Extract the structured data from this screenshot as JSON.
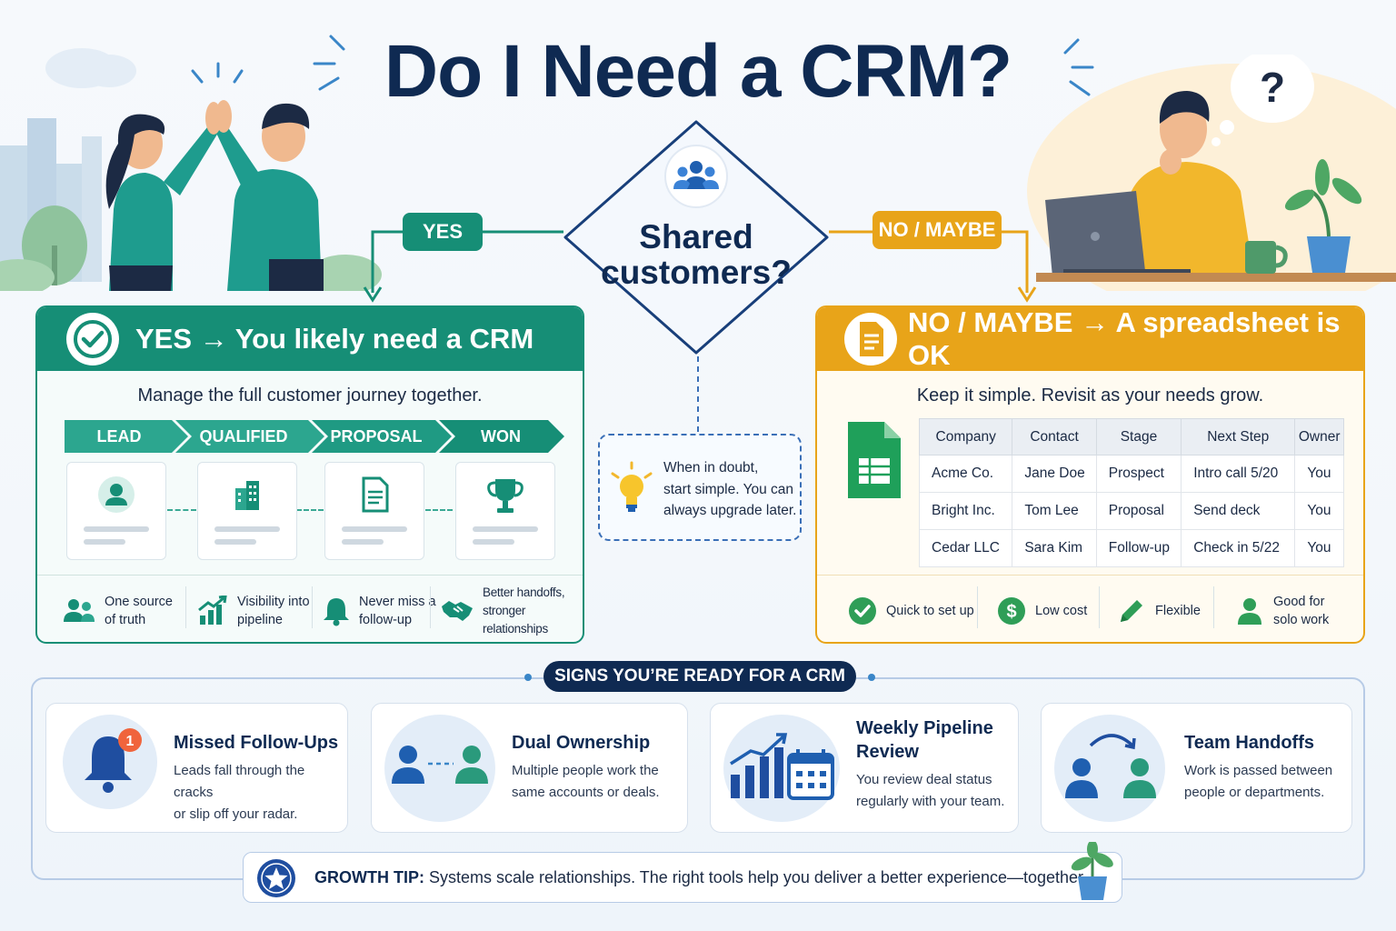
{
  "title": "Do I Need a CRM?",
  "decision": {
    "question_line1": "Shared",
    "question_line2": "customers?",
    "yes_label": "YES",
    "no_label": "NO / MAYBE"
  },
  "yes_panel": {
    "heading": "YES → You likely need a CRM",
    "subtitle": "Manage the full customer journey together.",
    "stages": [
      "LEAD",
      "QUALIFIED",
      "PROPOSAL",
      "WON"
    ],
    "benefits": [
      {
        "line1": "One source",
        "line2": "of truth",
        "icon": "people-icon"
      },
      {
        "line1": "Visibility into",
        "line2": "pipeline",
        "icon": "growth-chart-icon"
      },
      {
        "line1": "Never miss a",
        "line2": "follow-up",
        "icon": "bell-icon"
      },
      {
        "line1": "Better handoffs,",
        "line2": "stronger relationships",
        "icon": "handshake-icon"
      }
    ],
    "accent": "#168e76"
  },
  "no_panel": {
    "heading": "NO / MAYBE → A spreadsheet is OK",
    "subtitle": "Keep it simple. Revisit as your needs grow.",
    "table": {
      "headers": [
        "Company",
        "Contact",
        "Stage",
        "Next Step",
        "Owner"
      ],
      "rows": [
        [
          "Acme Co.",
          "Jane Doe",
          "Prospect",
          "Intro call 5/20",
          "You"
        ],
        [
          "Bright Inc.",
          "Tom Lee",
          "Proposal",
          "Send deck",
          "You"
        ],
        [
          "Cedar LLC",
          "Sara Kim",
          "Follow-up",
          "Check in 5/22",
          "You"
        ]
      ]
    },
    "benefits": [
      {
        "line1": "Quick to set up",
        "line2": "",
        "icon": "check-circle-icon"
      },
      {
        "line1": "Low cost",
        "line2": "",
        "icon": "dollar-icon"
      },
      {
        "line1": "Flexible",
        "line2": "",
        "icon": "pencil-icon"
      },
      {
        "line1": "Good for",
        "line2": "solo work",
        "icon": "person-icon"
      }
    ],
    "accent": "#e8a419"
  },
  "tip": {
    "line1": "When in doubt,",
    "line2": "start simple. You can",
    "line3": "always upgrade later."
  },
  "signs": {
    "label": "SIGNS YOU’RE READY FOR A CRM",
    "cards": [
      {
        "title": "Missed Follow-Ups",
        "title2": "",
        "desc1": "Leads fall through the cracks",
        "desc2": "or slip off your radar.",
        "badge": "1",
        "icon": "bell-icon"
      },
      {
        "title": "Dual Ownership",
        "title2": "",
        "desc1": "Multiple people work the",
        "desc2": "same accounts or deals.",
        "icon": "two-people-icon"
      },
      {
        "title": "Weekly Pipeline",
        "title2": "Review",
        "desc1": "You review deal status",
        "desc2": "regularly with your team.",
        "icon": "calendar-chart-icon"
      },
      {
        "title": "Team Handoffs",
        "title2": "",
        "desc1": "Work is passed between",
        "desc2": "people or departments.",
        "icon": "handoff-icon"
      }
    ]
  },
  "growth_tip": {
    "label": "GROWTH TIP:",
    "text": "Systems scale relationships. The right tools help you deliver a better experience—together."
  }
}
